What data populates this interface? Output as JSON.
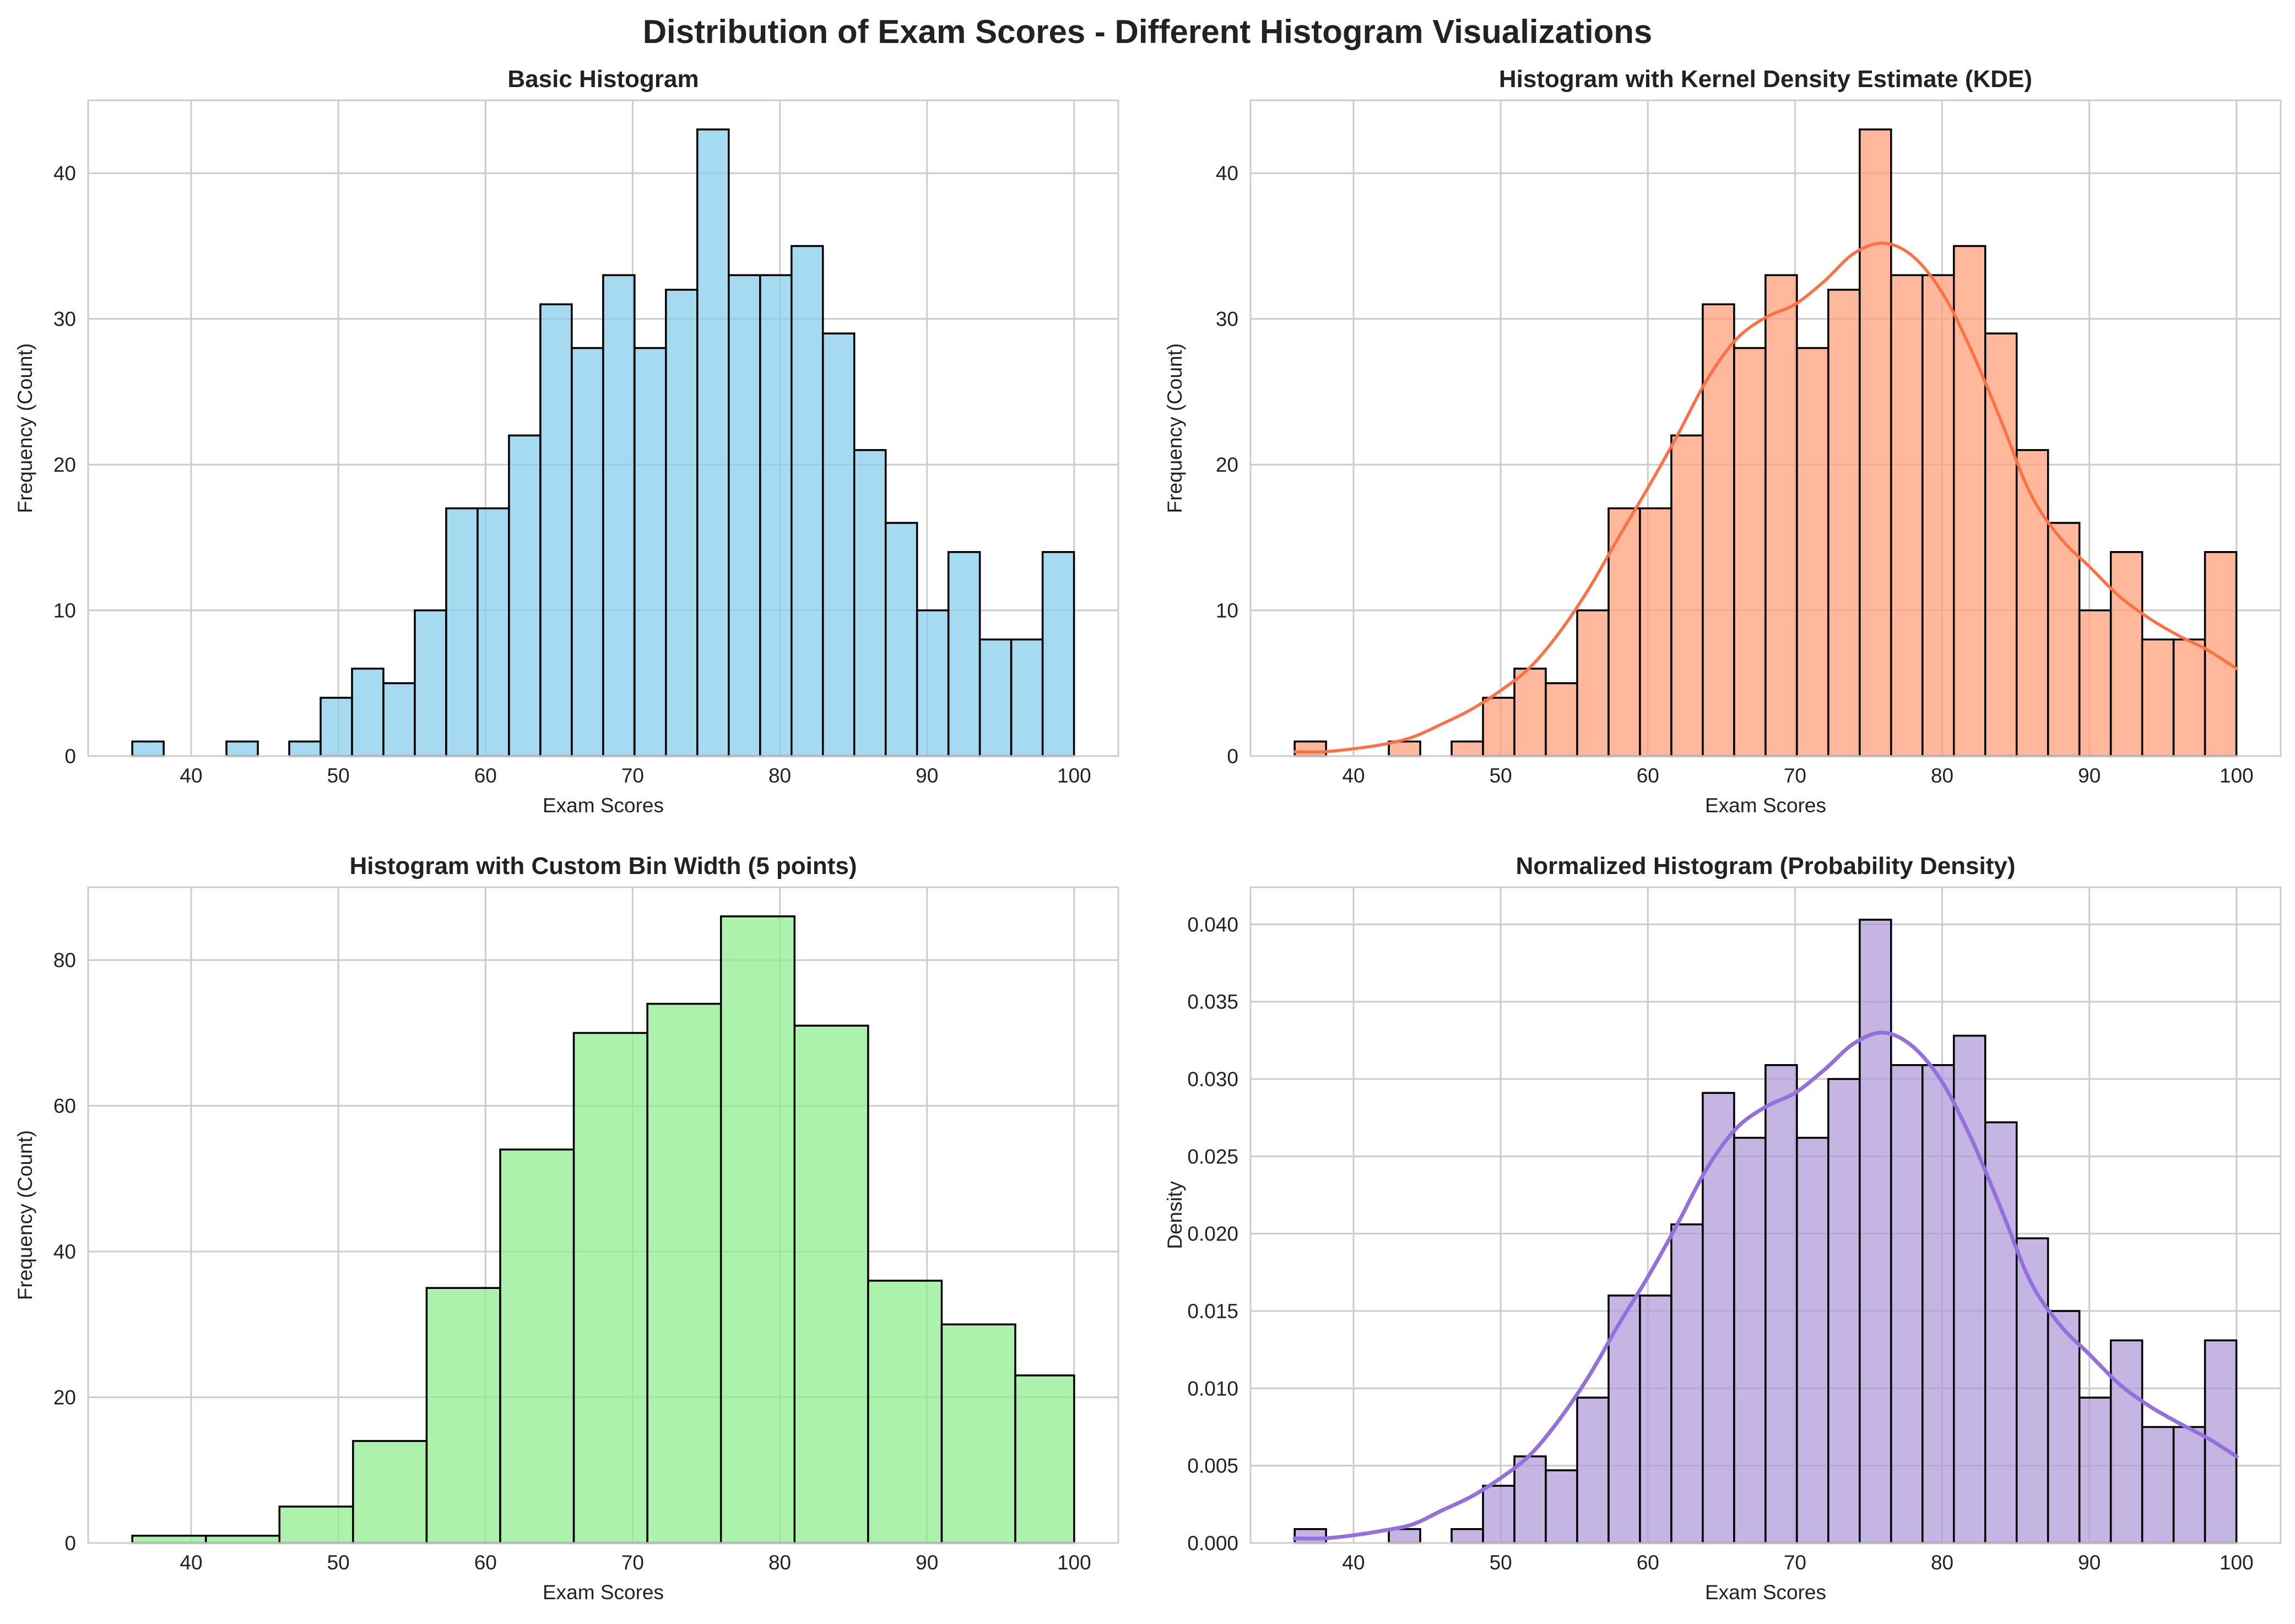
{
  "figure_title": "Distribution of Exam Scores - Different Histogram Visualizations",
  "chart_data": [
    {
      "type": "bar",
      "title": "Basic Histogram",
      "xlabel": "Exam Scores",
      "ylabel": "Frequency (Count)",
      "xlim": [
        33,
        103
      ],
      "ylim": [
        0,
        45
      ],
      "xticks": [
        40,
        50,
        60,
        70,
        80,
        90,
        100
      ],
      "yticks": [
        0,
        10,
        20,
        30,
        40
      ],
      "ytick_labels": [
        "0",
        "10",
        "20",
        "30",
        "40"
      ],
      "grid": true,
      "bin_start": 36,
      "bin_width": 2.133,
      "values": [
        1,
        0,
        0,
        1,
        0,
        1,
        4,
        6,
        5,
        10,
        17,
        17,
        22,
        31,
        28,
        33,
        28,
        32,
        43,
        33,
        33,
        35,
        29,
        21,
        16,
        10,
        14,
        8,
        8,
        14
      ],
      "color": "#87ceeb",
      "edgecolor": "#000000"
    },
    {
      "type": "bar",
      "title": "Histogram with Kernel Density Estimate (KDE)",
      "xlabel": "Exam Scores",
      "ylabel": "Frequency (Count)",
      "xlim": [
        33,
        103
      ],
      "ylim": [
        0,
        45
      ],
      "xticks": [
        40,
        50,
        60,
        70,
        80,
        90,
        100
      ],
      "yticks": [
        0,
        10,
        20,
        30,
        40
      ],
      "ytick_labels": [
        "0",
        "10",
        "20",
        "30",
        "40"
      ],
      "grid": true,
      "bin_start": 36,
      "bin_width": 2.133,
      "values": [
        1,
        0,
        0,
        1,
        0,
        1,
        4,
        6,
        5,
        10,
        17,
        17,
        22,
        31,
        28,
        33,
        28,
        32,
        43,
        33,
        33,
        35,
        29,
        21,
        16,
        10,
        14,
        8,
        8,
        14
      ],
      "color": "#ffa07a",
      "edgecolor": "#000000",
      "kde": {
        "color": "#ff7043",
        "x": [
          36,
          38,
          40,
          42,
          44,
          46,
          48,
          50,
          52,
          54,
          56,
          58,
          60,
          62,
          64,
          66,
          68,
          70,
          72,
          74,
          76,
          78,
          80,
          82,
          84,
          86,
          88,
          90,
          92,
          94,
          96,
          98,
          100
        ],
        "y": [
          0.3,
          0.3,
          0.5,
          0.8,
          1.3,
          2.2,
          3.2,
          4.5,
          6.1,
          8.5,
          11.5,
          15.0,
          18.4,
          22.0,
          25.8,
          28.6,
          30.1,
          31.0,
          32.6,
          34.5,
          35.2,
          34.3,
          31.8,
          27.8,
          23.0,
          18.0,
          15.0,
          13.0,
          11.0,
          9.5,
          8.3,
          7.3,
          6.0
        ]
      }
    },
    {
      "type": "bar",
      "title": "Histogram with Custom Bin Width (5 points)",
      "xlabel": "Exam Scores",
      "ylabel": "Frequency (Count)",
      "xlim": [
        33,
        103
      ],
      "ylim": [
        0,
        90
      ],
      "xticks": [
        40,
        50,
        60,
        70,
        80,
        90,
        100
      ],
      "yticks": [
        0,
        20,
        40,
        60,
        80
      ],
      "ytick_labels": [
        "0",
        "20",
        "40",
        "60",
        "80"
      ],
      "grid": true,
      "bin_edges": [
        36,
        41,
        46,
        51,
        56,
        61,
        66,
        71,
        76,
        81,
        86,
        91,
        96,
        100
      ],
      "values": [
        1,
        1,
        5,
        14,
        35,
        54,
        70,
        74,
        86,
        71,
        36,
        30,
        23
      ],
      "color": "#90ee90",
      "edgecolor": "#000000"
    },
    {
      "type": "bar",
      "title": "Normalized Histogram (Probability Density)",
      "xlabel": "Exam Scores",
      "ylabel": "Density",
      "xlim": [
        33,
        103
      ],
      "ylim": [
        0,
        0.0424
      ],
      "xticks": [
        40,
        50,
        60,
        70,
        80,
        90,
        100
      ],
      "yticks": [
        0,
        0.005,
        0.01,
        0.015,
        0.02,
        0.025,
        0.03,
        0.035,
        0.04
      ],
      "ytick_labels": [
        "0.000",
        "0.005",
        "0.010",
        "0.015",
        "0.020",
        "0.025",
        "0.030",
        "0.035",
        "0.040"
      ],
      "grid": true,
      "bin_start": 36,
      "bin_width": 2.133,
      "values": [
        0.0009,
        0,
        0,
        0.0009,
        0,
        0.0009,
        0.0037,
        0.0056,
        0.0047,
        0.0094,
        0.016,
        0.016,
        0.0206,
        0.0291,
        0.0262,
        0.0309,
        0.0262,
        0.03,
        0.0403,
        0.0309,
        0.0309,
        0.0328,
        0.0272,
        0.0197,
        0.015,
        0.0094,
        0.0131,
        0.0075,
        0.0075,
        0.0131
      ],
      "color": "#b19cd9",
      "edgecolor": "#000000",
      "kde": {
        "color": "#9370db",
        "x": [
          36,
          38,
          40,
          42,
          44,
          46,
          48,
          50,
          52,
          54,
          56,
          58,
          60,
          62,
          64,
          66,
          68,
          70,
          72,
          74,
          76,
          78,
          80,
          82,
          84,
          86,
          88,
          90,
          92,
          94,
          96,
          98,
          100
        ],
        "y": [
          0.0003,
          0.0003,
          0.0005,
          0.0008,
          0.0012,
          0.0021,
          0.003,
          0.0042,
          0.0057,
          0.008,
          0.0108,
          0.0141,
          0.0172,
          0.0206,
          0.0242,
          0.0268,
          0.0282,
          0.0291,
          0.0306,
          0.0323,
          0.033,
          0.0321,
          0.0298,
          0.0261,
          0.0216,
          0.0169,
          0.0141,
          0.0122,
          0.0103,
          0.0089,
          0.0078,
          0.0068,
          0.0056
        ]
      }
    }
  ]
}
